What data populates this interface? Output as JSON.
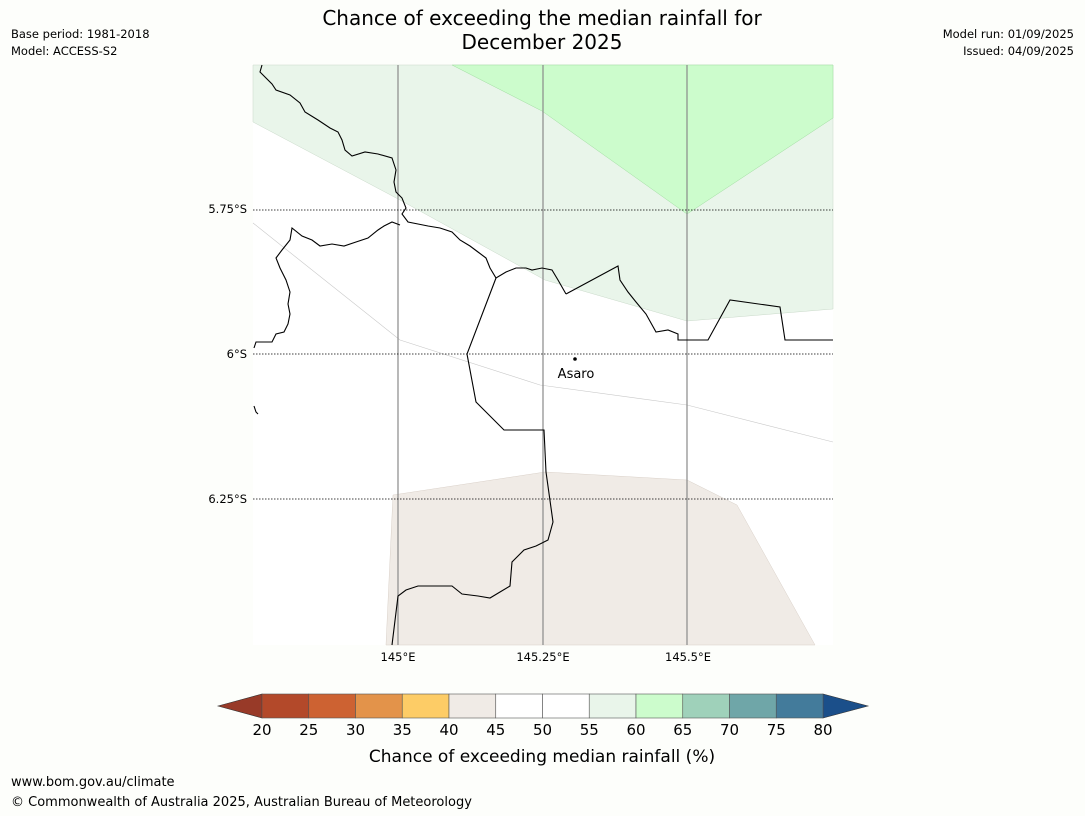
{
  "title": {
    "line1": "Chance of exceeding the median rainfall for",
    "line2": "December 2025"
  },
  "info_left": {
    "base_period": "Base period: 1981-2018",
    "model": "Model: ACCESS-S2"
  },
  "info_right": {
    "model_run": "Model run: 01/09/2025",
    "issued": "Issued: 04/09/2025"
  },
  "map": {
    "lat_labels": [
      "5.75°S",
      "6°S",
      "6.25°S"
    ],
    "lon_labels": [
      "145°E",
      "145.25°E",
      "145.5°E"
    ],
    "place_name": "Asaro",
    "category_colors": {
      "40-45": "#f0ebe6",
      "45-55": "#ffffff",
      "55-60": "#e9f5ea",
      "60-65": "#ccfccc"
    }
  },
  "colorbar": {
    "ticks": [
      "20",
      "25",
      "30",
      "35",
      "40",
      "45",
      "50",
      "55",
      "60",
      "65",
      "70",
      "75",
      "80"
    ],
    "colors": [
      "#b3492a",
      "#cd6232",
      "#e3934a",
      "#fdcc66",
      "#f0ebe6",
      "#ffffff",
      "#ffffff",
      "#e9f5ea",
      "#ccfccc",
      "#9fd1ba",
      "#6fa6a8",
      "#437b9b"
    ],
    "under_color": "#983a28",
    "over_color": "#1b4f8a",
    "label": "Chance of exceeding median rainfall (%)"
  },
  "footer": {
    "url": "www.bom.gov.au/climate",
    "copyright": "© Commonwealth of Australia 2025, Australian Bureau of Meteorology"
  }
}
